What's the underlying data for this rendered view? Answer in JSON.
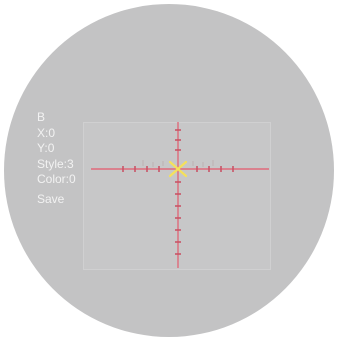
{
  "menu": {
    "mode_label": "B",
    "x": {
      "label": "X:",
      "value": "0"
    },
    "y": {
      "label": "Y:",
      "value": "0"
    },
    "style": {
      "label": "Style:",
      "value": "3"
    },
    "color": {
      "label": "Color:",
      "value": "0"
    },
    "save_label": "Save"
  },
  "colors": {
    "scope_background": "#c3c3c4",
    "menu_text": "#f2f2f2",
    "reticle_line": "#e06a7a",
    "reticle_center": "#f5e15a"
  },
  "icons": {
    "reticle": "crosshair-icon"
  }
}
